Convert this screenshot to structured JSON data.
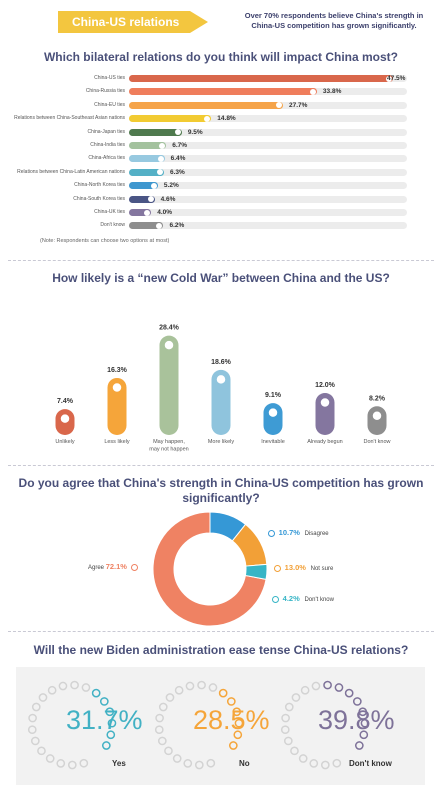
{
  "header": {
    "tag": "China-US relations",
    "headline": "Over 70% respondents believe China's strength in China-US competition has grown significantly."
  },
  "chart_data": [
    {
      "type": "bar",
      "orientation": "horizontal",
      "title": "Which bilateral relations do you think will impact China most?",
      "categories": [
        "China-US ties",
        "China-Russia ties",
        "China-EU ties",
        "Relations between China-Southeast Asian nations",
        "China-Japan ties",
        "China-India ties",
        "China-Africa ties",
        "Relations between China-Latin American nations",
        "China-North Korea ties",
        "China-South Korea ties",
        "China-UK ties",
        "Don't know"
      ],
      "values": [
        47.5,
        33.8,
        27.7,
        14.8,
        9.5,
        6.7,
        6.4,
        6.3,
        5.2,
        4.6,
        4.0,
        6.2
      ],
      "value_labels": [
        "47.5%",
        "33.8%",
        "27.7%",
        "14.8%",
        "9.5%",
        "6.7%",
        "6.4%",
        "6.3%",
        "5.2%",
        "4.6%",
        "4.0%",
        "6.2%"
      ],
      "colors": [
        "#d9674b",
        "#ef7d5c",
        "#f5a44a",
        "#f2cb32",
        "#4f7a4e",
        "#a3c29e",
        "#97c9e0",
        "#54b0c6",
        "#3e97cf",
        "#4a5585",
        "#84769f",
        "#8e8e8e"
      ],
      "xlim": [
        0,
        50
      ],
      "note": "(Note: Respondents can choose two options at most)"
    },
    {
      "type": "bar",
      "title": "How likely is a “new Cold War” between China and the US?",
      "categories": [
        "Unlikely",
        "Less likely",
        "May happen, may not happen",
        "More likely",
        "Inevitable",
        "Already begun",
        "Don't know"
      ],
      "category_lines": [
        [
          "Unlikely"
        ],
        [
          "Less likely"
        ],
        [
          "May happen,",
          "may not happen"
        ],
        [
          "More likely"
        ],
        [
          "Inevitable"
        ],
        [
          "Already begun"
        ],
        [
          "Don't know"
        ]
      ],
      "values": [
        7.4,
        16.3,
        28.4,
        18.6,
        9.1,
        12.0,
        8.2
      ],
      "value_labels": [
        "7.4%",
        "16.3%",
        "28.4%",
        "18.6%",
        "9.1%",
        "12.0%",
        "8.2%"
      ],
      "colors": [
        "#d9674b",
        "#f5a53a",
        "#a9c29b",
        "#8fc4dd",
        "#3e9bd4",
        "#84769f",
        "#8e8e8e"
      ],
      "ylim": [
        0,
        30
      ]
    },
    {
      "type": "pie",
      "title": "Do you agree that China's strength in China-US competition has grown significantly?",
      "categories": [
        "Agree",
        "Disagree",
        "Not sure",
        "Don't know"
      ],
      "values": [
        72.1,
        10.7,
        13.0,
        4.2
      ],
      "value_labels": [
        "72.1%",
        "10.7%",
        "13.0%",
        "4.2%"
      ],
      "colors": [
        "#ef8263",
        "#3598d6",
        "#f2a037",
        "#37b5c6"
      ]
    },
    {
      "type": "pie",
      "title": "Will the new Biden administration ease tense China-US relations?",
      "categories": [
        "Yes",
        "No",
        "Don't know"
      ],
      "values": [
        31.7,
        28.5,
        39.8
      ],
      "value_labels": [
        "31.7%",
        "28.5%",
        "39.8%"
      ],
      "colors": [
        "#42b1c4",
        "#f5a53a",
        "#7e7299"
      ]
    }
  ]
}
